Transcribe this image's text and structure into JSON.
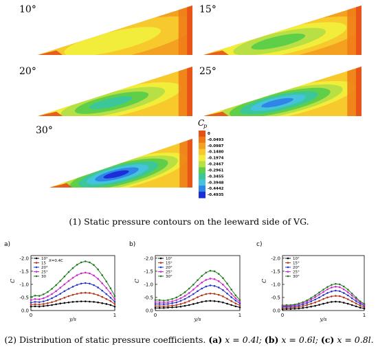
{
  "contours": {
    "panels": [
      {
        "angle_label": "10°",
        "intensity": 0.0
      },
      {
        "angle_label": "15°",
        "intensity": 0.3
      },
      {
        "angle_label": "20°",
        "intensity": 0.58
      },
      {
        "angle_label": "25°",
        "intensity": 0.82
      },
      {
        "angle_label": "30°",
        "intensity": 1.0
      }
    ],
    "colorbar": {
      "title": "C",
      "title_sub": "p",
      "levels": [
        "0",
        "-0.0493",
        "-0.0987",
        "-0.1480",
        "-0.1974",
        "-0.2467",
        "-0.2961",
        "-0.3455",
        "-0.3948",
        "-0.4442",
        "-0.4935"
      ],
      "colors": [
        "#e8501a",
        "#ee7a16",
        "#f4a020",
        "#f7c92c",
        "#f2ec3a",
        "#b8e044",
        "#5fcf4a",
        "#3cc79a",
        "#46c3dc",
        "#2f86e6",
        "#1a2fd8"
      ]
    }
  },
  "caption_top": {
    "number": "(1)",
    "text": " Static pressure contours on the leeward side of VG."
  },
  "chart_data": [
    {
      "type": "line",
      "panel_label": "a)",
      "annotation": "X=0.4C",
      "x": [
        0,
        0.05,
        0.1,
        0.15,
        0.2,
        0.25,
        0.3,
        0.35,
        0.4,
        0.45,
        0.5,
        0.55,
        0.6,
        0.65,
        0.7,
        0.75,
        0.8,
        0.85,
        0.9,
        0.95,
        1.0
      ],
      "series": [
        {
          "name": "10°",
          "color": "#000000",
          "values": [
            0.15,
            0.16,
            0.15,
            0.17,
            0.19,
            0.21,
            0.24,
            0.27,
            0.29,
            0.31,
            0.33,
            0.34,
            0.35,
            0.35,
            0.34,
            0.33,
            0.31,
            0.28,
            0.25,
            0.21,
            0.15
          ]
        },
        {
          "name": "15",
          "color": "#b03010",
          "values": [
            0.22,
            0.24,
            0.23,
            0.25,
            0.28,
            0.32,
            0.37,
            0.43,
            0.49,
            0.55,
            0.6,
            0.64,
            0.67,
            0.68,
            0.67,
            0.64,
            0.59,
            0.52,
            0.44,
            0.36,
            0.25
          ]
        },
        {
          "name": "20°",
          "color": "#2233cc",
          "values": [
            0.3,
            0.33,
            0.32,
            0.35,
            0.4,
            0.47,
            0.55,
            0.64,
            0.74,
            0.83,
            0.91,
            0.98,
            1.03,
            1.05,
            1.03,
            0.97,
            0.88,
            0.76,
            0.63,
            0.49,
            0.33
          ]
        },
        {
          "name": "25°",
          "color": "#cc22cc",
          "values": [
            0.4,
            0.44,
            0.43,
            0.47,
            0.54,
            0.63,
            0.74,
            0.87,
            1.0,
            1.13,
            1.25,
            1.35,
            1.42,
            1.45,
            1.42,
            1.34,
            1.21,
            1.04,
            0.86,
            0.66,
            0.43
          ]
        },
        {
          "name": "30",
          "color": "#1f7a1f",
          "values": [
            0.52,
            0.57,
            0.56,
            0.62,
            0.71,
            0.83,
            0.97,
            1.13,
            1.3,
            1.47,
            1.62,
            1.75,
            1.84,
            1.88,
            1.84,
            1.74,
            1.57,
            1.35,
            1.11,
            0.85,
            0.55
          ]
        }
      ],
      "xlabel": "y/s",
      "ylabel": "C",
      "xticks": [
        "0",
        "1"
      ],
      "yticks": [
        "-2.0",
        "-1.5",
        "-1.0",
        "-0.5",
        "0.0"
      ],
      "xlim": [
        0,
        1
      ],
      "ylim": [
        0,
        2.1
      ],
      "legend": "top-left"
    },
    {
      "type": "line",
      "panel_label": "b)",
      "x": [
        0,
        0.05,
        0.1,
        0.15,
        0.2,
        0.25,
        0.3,
        0.35,
        0.4,
        0.45,
        0.5,
        0.55,
        0.6,
        0.65,
        0.7,
        0.75,
        0.8,
        0.85,
        0.9,
        0.95,
        1.0
      ],
      "series": [
        {
          "name": "10°",
          "color": "#000000",
          "values": [
            0.1,
            0.1,
            0.1,
            0.11,
            0.12,
            0.13,
            0.15,
            0.18,
            0.21,
            0.25,
            0.29,
            0.33,
            0.36,
            0.37,
            0.36,
            0.34,
            0.31,
            0.26,
            0.21,
            0.16,
            0.12
          ]
        },
        {
          "name": "15°",
          "color": "#b03010",
          "values": [
            0.17,
            0.17,
            0.16,
            0.17,
            0.19,
            0.21,
            0.25,
            0.3,
            0.36,
            0.43,
            0.51,
            0.58,
            0.63,
            0.65,
            0.64,
            0.6,
            0.54,
            0.45,
            0.36,
            0.27,
            0.2
          ]
        },
        {
          "name": "20°",
          "color": "#2233cc",
          "values": [
            0.25,
            0.25,
            0.24,
            0.25,
            0.28,
            0.31,
            0.37,
            0.44,
            0.53,
            0.63,
            0.74,
            0.84,
            0.92,
            0.96,
            0.94,
            0.88,
            0.78,
            0.65,
            0.51,
            0.38,
            0.27
          ]
        },
        {
          "name": "25°",
          "color": "#cc22cc",
          "values": [
            0.32,
            0.32,
            0.31,
            0.32,
            0.35,
            0.4,
            0.47,
            0.56,
            0.67,
            0.8,
            0.94,
            1.07,
            1.17,
            1.22,
            1.2,
            1.12,
            0.99,
            0.82,
            0.64,
            0.47,
            0.33
          ]
        },
        {
          "name": "30°",
          "color": "#1f7a1f",
          "values": [
            0.4,
            0.4,
            0.38,
            0.4,
            0.44,
            0.5,
            0.59,
            0.7,
            0.84,
            0.99,
            1.16,
            1.32,
            1.45,
            1.52,
            1.5,
            1.4,
            1.24,
            1.03,
            0.8,
            0.58,
            0.4
          ]
        }
      ],
      "xlabel": "y/s",
      "ylabel": "C",
      "xticks": [
        "0",
        "1"
      ],
      "yticks": [
        "-2.0",
        "-1.5",
        "-1.0",
        "-0.5",
        "0.0"
      ],
      "xlim": [
        0,
        1
      ],
      "ylim": [
        0,
        2.1
      ],
      "legend": "top-left"
    },
    {
      "type": "line",
      "panel_label": "c)",
      "x": [
        0,
        0.05,
        0.1,
        0.15,
        0.2,
        0.25,
        0.3,
        0.35,
        0.4,
        0.45,
        0.5,
        0.55,
        0.6,
        0.65,
        0.7,
        0.75,
        0.8,
        0.85,
        0.9,
        0.95,
        1.0
      ],
      "series": [
        {
          "name": "10°",
          "color": "#000000",
          "values": [
            0.05,
            0.06,
            0.06,
            0.07,
            0.08,
            0.1,
            0.12,
            0.15,
            0.18,
            0.22,
            0.26,
            0.3,
            0.33,
            0.34,
            0.33,
            0.3,
            0.26,
            0.21,
            0.16,
            0.11,
            0.08
          ]
        },
        {
          "name": "15°",
          "color": "#b03010",
          "values": [
            0.1,
            0.11,
            0.11,
            0.12,
            0.14,
            0.17,
            0.21,
            0.26,
            0.31,
            0.37,
            0.44,
            0.5,
            0.54,
            0.56,
            0.55,
            0.5,
            0.43,
            0.35,
            0.27,
            0.19,
            0.13
          ]
        },
        {
          "name": "20°",
          "color": "#2233cc",
          "values": [
            0.14,
            0.15,
            0.15,
            0.16,
            0.19,
            0.23,
            0.28,
            0.35,
            0.42,
            0.5,
            0.59,
            0.67,
            0.73,
            0.76,
            0.74,
            0.67,
            0.58,
            0.47,
            0.36,
            0.26,
            0.18
          ]
        },
        {
          "name": "25°",
          "color": "#cc22cc",
          "values": [
            0.17,
            0.18,
            0.18,
            0.2,
            0.23,
            0.28,
            0.34,
            0.42,
            0.51,
            0.61,
            0.71,
            0.81,
            0.88,
            0.91,
            0.89,
            0.81,
            0.7,
            0.57,
            0.44,
            0.31,
            0.22
          ]
        },
        {
          "name": "30°",
          "color": "#1f7a1f",
          "values": [
            0.2,
            0.21,
            0.21,
            0.23,
            0.27,
            0.32,
            0.39,
            0.48,
            0.58,
            0.69,
            0.8,
            0.9,
            0.98,
            1.02,
            1.0,
            0.92,
            0.8,
            0.65,
            0.5,
            0.35,
            0.26
          ]
        }
      ],
      "xlabel": "y/s",
      "ylabel": "C",
      "xticks": [
        "0",
        "1"
      ],
      "yticks": [
        "-2.0",
        "-1.5",
        "-1.0",
        "-0.5",
        "0.0"
      ],
      "xlim": [
        0,
        1
      ],
      "ylim": [
        0,
        2.1
      ],
      "legend": "top-left"
    }
  ],
  "caption_bottom": {
    "number": "(2)",
    "text": " Distribution of static pressure coefficients. ",
    "parts": [
      {
        "label": "(a)",
        "expr": " x = 0.4l; "
      },
      {
        "label": "(b)",
        "expr": " x = 0.6l; "
      },
      {
        "label": "(c)",
        "expr": " x = 0.8l."
      }
    ]
  }
}
